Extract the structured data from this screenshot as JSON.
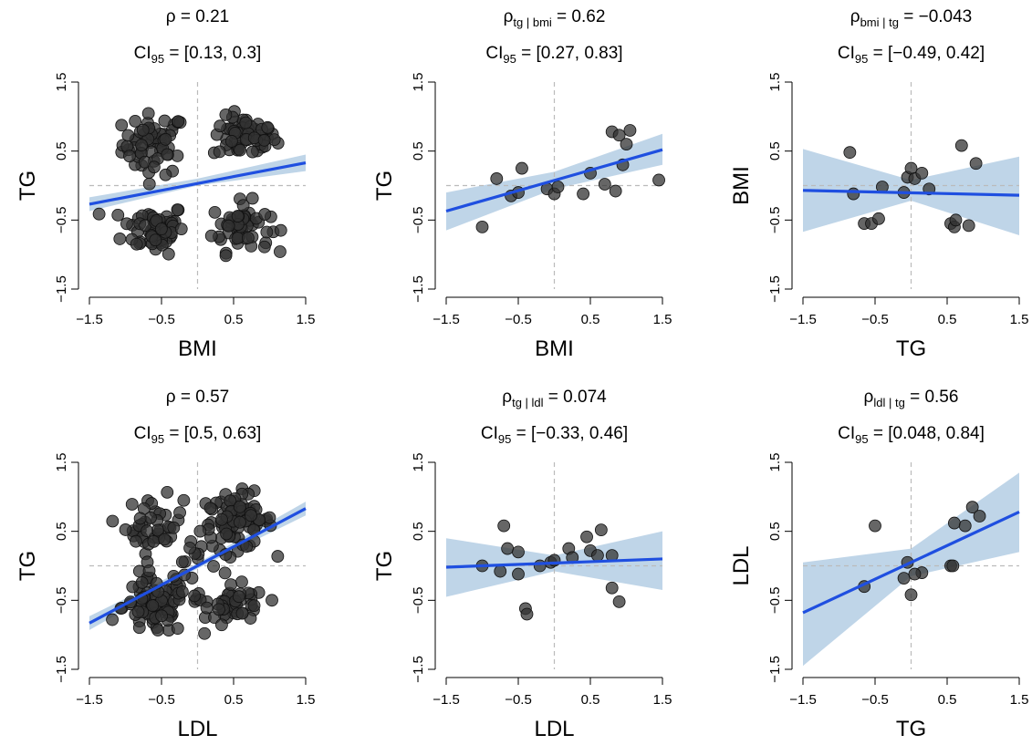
{
  "chart_data": [
    {
      "type": "scatter",
      "title_prefix": "ρ",
      "title_sub": "",
      "title_value": "= 0.21",
      "ci_prefix": "CI",
      "ci_sub": "95",
      "ci_value": "= [0.13, 0.3]",
      "xlabel": "BMI",
      "ylabel": "TG",
      "xlim": [
        -1.5,
        1.5
      ],
      "ylim": [
        -1.5,
        1.5
      ],
      "xticks": [
        "-1.5",
        "-0.5",
        "0.5",
        "1.5"
      ],
      "yticks": [
        "-1.5",
        "-0.5",
        "0.5",
        "1.5"
      ],
      "fit": {
        "x": [
          -1.5,
          1.5
        ],
        "y": [
          -0.27,
          0.33
        ]
      },
      "ribbon": {
        "x": [
          -1.5,
          0,
          1.5
        ],
        "lo": [
          -0.37,
          0.0,
          0.21
        ],
        "hi": [
          -0.17,
          0.1,
          0.45
        ]
      },
      "clusters": [
        {
          "cx": -0.6,
          "cy": 0.6,
          "n": 60,
          "sx": 0.22,
          "sy": 0.22
        },
        {
          "cx": 0.65,
          "cy": 0.7,
          "n": 60,
          "sx": 0.22,
          "sy": 0.15
        },
        {
          "cx": -0.6,
          "cy": -0.62,
          "n": 60,
          "sx": 0.22,
          "sy": 0.18
        },
        {
          "cx": 0.6,
          "cy": -0.6,
          "n": 55,
          "sx": 0.2,
          "sy": 0.18
        }
      ],
      "points": []
    },
    {
      "type": "scatter",
      "title_prefix": "ρ",
      "title_sub": "tg | bmi",
      "title_value": "= 0.62",
      "ci_prefix": "CI",
      "ci_sub": "95",
      "ci_value": "= [0.27, 0.83]",
      "xlabel": "BMI",
      "ylabel": "TG",
      "xlim": [
        -1.5,
        1.5
      ],
      "ylim": [
        -1.5,
        1.5
      ],
      "xticks": [
        "-1.5",
        "-0.5",
        "0.5",
        "1.5"
      ],
      "yticks": [
        "-1.5",
        "-0.5",
        "0.5",
        "1.5"
      ],
      "fit": {
        "x": [
          -1.5,
          1.5
        ],
        "y": [
          -0.37,
          0.52
        ]
      },
      "ribbon": {
        "x": [
          -1.5,
          0,
          1.5
        ],
        "lo": [
          -0.65,
          -0.05,
          0.3
        ],
        "hi": [
          -0.1,
          0.2,
          0.75
        ]
      },
      "clusters": [],
      "points": [
        [
          -1.0,
          -0.6
        ],
        [
          -0.8,
          0.1
        ],
        [
          -0.6,
          -0.15
        ],
        [
          -0.5,
          -0.1
        ],
        [
          -0.45,
          0.25
        ],
        [
          -0.1,
          -0.05
        ],
        [
          0.0,
          -0.12
        ],
        [
          0.05,
          -0.02
        ],
        [
          0.4,
          -0.12
        ],
        [
          0.5,
          0.18
        ],
        [
          0.8,
          0.78
        ],
        [
          0.9,
          0.73
        ],
        [
          1.0,
          0.6
        ],
        [
          1.05,
          0.8
        ],
        [
          0.7,
          0.02
        ],
        [
          0.85,
          -0.08
        ],
        [
          0.95,
          0.3
        ],
        [
          1.45,
          0.08
        ]
      ]
    },
    {
      "type": "scatter",
      "title_prefix": "ρ",
      "title_sub": "bmi | tg",
      "title_value": "= −0.043",
      "ci_prefix": "CI",
      "ci_sub": "95",
      "ci_value": "= [−0.49, 0.42]",
      "xlabel": "TG",
      "ylabel": "BMI",
      "xlim": [
        -1.5,
        1.5
      ],
      "ylim": [
        -1.5,
        1.5
      ],
      "xticks": [
        "-1.5",
        "-0.5",
        "0.5",
        "1.5"
      ],
      "yticks": [
        "-1.5",
        "-0.5",
        "0.5",
        "1.5"
      ],
      "fit": {
        "x": [
          -1.5,
          1.5
        ],
        "y": [
          -0.07,
          -0.14
        ]
      },
      "ribbon": {
        "x": [
          -1.5,
          0,
          1.5
        ],
        "lo": [
          -0.67,
          -0.22,
          -0.72
        ],
        "hi": [
          0.53,
          0.08,
          0.42
        ]
      },
      "clusters": [],
      "points": [
        [
          -0.85,
          0.48
        ],
        [
          -0.8,
          -0.12
        ],
        [
          -0.65,
          -0.55
        ],
        [
          -0.55,
          -0.55
        ],
        [
          -0.45,
          -0.48
        ],
        [
          -0.4,
          -0.02
        ],
        [
          -0.1,
          -0.1
        ],
        [
          -0.05,
          0.12
        ],
        [
          0.0,
          0.25
        ],
        [
          0.05,
          0.1
        ],
        [
          0.15,
          0.18
        ],
        [
          0.25,
          -0.05
        ],
        [
          0.55,
          -0.55
        ],
        [
          0.6,
          -0.6
        ],
        [
          0.7,
          0.58
        ],
        [
          0.8,
          -0.58
        ],
        [
          0.9,
          0.32
        ],
        [
          0.62,
          -0.5
        ]
      ]
    },
    {
      "type": "scatter",
      "title_prefix": "ρ",
      "title_sub": "",
      "title_value": "= 0.57",
      "ci_prefix": "CI",
      "ci_sub": "95",
      "ci_value": "= [0.5, 0.63]",
      "xlabel": "LDL",
      "ylabel": "TG",
      "xlim": [
        -1.5,
        1.5
      ],
      "ylim": [
        -1.5,
        1.5
      ],
      "xticks": [
        "-1.5",
        "-0.5",
        "0.5",
        "1.5"
      ],
      "yticks": [
        "-1.5",
        "-0.5",
        "0.5",
        "1.5"
      ],
      "fit": {
        "x": [
          -1.5,
          1.5
        ],
        "y": [
          -0.83,
          0.83
        ]
      },
      "ribbon": {
        "x": [
          -1.5,
          0,
          1.5
        ],
        "lo": [
          -0.93,
          -0.04,
          0.73
        ],
        "hi": [
          -0.73,
          0.04,
          0.93
        ]
      },
      "clusters": [
        {
          "cx": -0.6,
          "cy": 0.6,
          "n": 40,
          "sx": 0.2,
          "sy": 0.2
        },
        {
          "cx": 0.55,
          "cy": 0.65,
          "n": 80,
          "sx": 0.25,
          "sy": 0.2
        },
        {
          "cx": -0.6,
          "cy": -0.6,
          "n": 70,
          "sx": 0.22,
          "sy": 0.2
        },
        {
          "cx": 0.55,
          "cy": -0.6,
          "n": 40,
          "sx": 0.2,
          "sy": 0.15
        },
        {
          "cx": 0.0,
          "cy": 0.0,
          "n": 35,
          "sx": 0.3,
          "sy": 0.35
        }
      ],
      "points": []
    },
    {
      "type": "scatter",
      "title_prefix": "ρ",
      "title_sub": "tg | ldl",
      "title_value": "= 0.074",
      "ci_prefix": "CI",
      "ci_sub": "95",
      "ci_value": "= [−0.33, 0.46]",
      "xlabel": "LDL",
      "ylabel": "TG",
      "xlim": [
        -1.5,
        1.5
      ],
      "ylim": [
        -1.5,
        1.5
      ],
      "xticks": [
        "-1.5",
        "-0.5",
        "0.5",
        "1.5"
      ],
      "yticks": [
        "-1.5",
        "-0.5",
        "0.5",
        "1.5"
      ],
      "fit": {
        "x": [
          -1.5,
          1.5
        ],
        "y": [
          -0.02,
          0.1
        ]
      },
      "ribbon": {
        "x": [
          -1.5,
          0,
          1.5
        ],
        "lo": [
          -0.45,
          -0.08,
          -0.35
        ],
        "hi": [
          0.4,
          0.15,
          0.5
        ]
      },
      "clusters": [],
      "points": [
        [
          -1.0,
          0.0
        ],
        [
          -0.75,
          -0.08
        ],
        [
          -0.7,
          0.58
        ],
        [
          -0.65,
          0.25
        ],
        [
          -0.5,
          -0.12
        ],
        [
          -0.5,
          0.2
        ],
        [
          -0.4,
          -0.62
        ],
        [
          -0.38,
          -0.7
        ],
        [
          -0.2,
          0.0
        ],
        [
          -0.05,
          0.05
        ],
        [
          0.0,
          0.08
        ],
        [
          0.2,
          0.25
        ],
        [
          0.25,
          0.12
        ],
        [
          0.45,
          0.42
        ],
        [
          0.5,
          0.22
        ],
        [
          0.6,
          0.15
        ],
        [
          0.65,
          0.52
        ],
        [
          0.8,
          0.15
        ],
        [
          0.8,
          -0.32
        ],
        [
          0.9,
          -0.52
        ]
      ]
    },
    {
      "type": "scatter",
      "title_prefix": "ρ",
      "title_sub": "ldl | tg",
      "title_value": "= 0.56",
      "ci_prefix": "CI",
      "ci_sub": "95",
      "ci_value": "= [0.048, 0.84]",
      "xlabel": "TG",
      "ylabel": "LDL",
      "xlim": [
        -1.5,
        1.5
      ],
      "ylim": [
        -1.5,
        1.5
      ],
      "xticks": [
        "-1.5",
        "-0.5",
        "0.5",
        "1.5"
      ],
      "yticks": [
        "-1.5",
        "-0.5",
        "0.5",
        "1.5"
      ],
      "fit": {
        "x": [
          -1.5,
          1.5
        ],
        "y": [
          -0.68,
          0.78
        ]
      },
      "ribbon": {
        "x": [
          -1.5,
          0,
          1.5
        ],
        "lo": [
          -1.45,
          -0.15,
          0.2
        ],
        "hi": [
          0.05,
          0.25,
          1.35
        ]
      },
      "clusters": [],
      "points": [
        [
          -0.65,
          -0.3
        ],
        [
          -0.5,
          0.58
        ],
        [
          -0.1,
          -0.18
        ],
        [
          -0.05,
          0.05
        ],
        [
          0.0,
          -0.42
        ],
        [
          0.15,
          -0.1
        ],
        [
          0.55,
          0.0
        ],
        [
          0.58,
          0.0
        ],
        [
          0.6,
          0.62
        ],
        [
          0.75,
          0.58
        ],
        [
          0.85,
          0.85
        ],
        [
          0.95,
          0.72
        ],
        [
          0.05,
          -0.12
        ]
      ]
    }
  ]
}
